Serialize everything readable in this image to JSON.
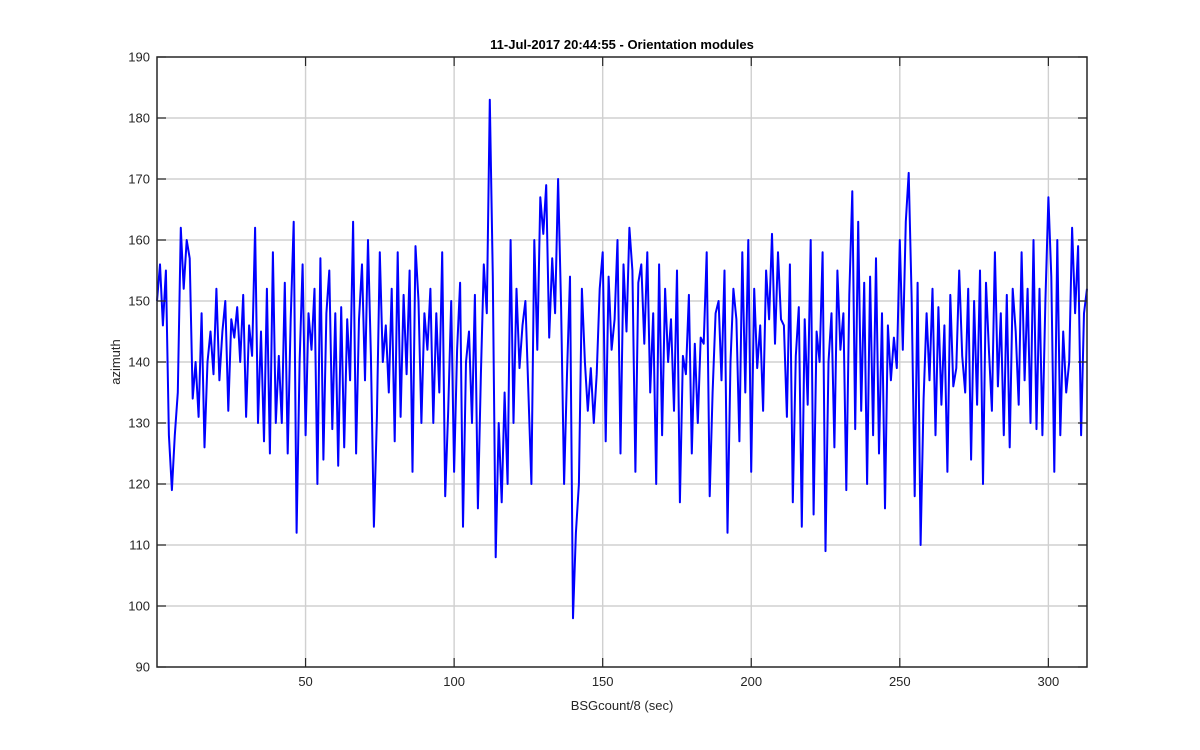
{
  "chart_data": {
    "type": "line",
    "title": "11-Jul-2017 20:44:55 - Orientation modules",
    "xlabel": "BSGcount/8 (sec)",
    "ylabel": "azimuth",
    "xlim": [
      0,
      313
    ],
    "ylim": [
      90,
      190
    ],
    "xticks": [
      50,
      100,
      150,
      200,
      250,
      300
    ],
    "yticks": [
      90,
      100,
      110,
      120,
      130,
      140,
      150,
      160,
      170,
      180,
      190
    ],
    "grid": true,
    "line_color": "#0000ff",
    "series": [
      {
        "x": [
          0,
          1,
          2,
          3,
          4,
          5,
          6,
          7,
          8,
          9,
          10,
          11,
          12,
          13,
          14,
          15,
          16,
          17,
          18,
          19,
          20,
          21,
          22,
          23,
          24,
          25,
          26,
          27,
          28,
          29,
          30,
          31,
          32,
          33,
          34,
          35,
          36,
          37,
          38,
          39,
          40,
          41,
          42,
          43,
          44,
          45,
          46,
          47,
          48,
          49,
          50,
          51,
          52,
          53,
          54,
          55,
          56,
          57,
          58,
          59,
          60,
          61,
          62,
          63,
          64,
          65,
          66,
          67,
          68,
          69,
          70,
          71,
          72,
          73,
          74,
          75,
          76,
          77,
          78,
          79,
          80,
          81,
          82,
          83,
          84,
          85,
          86,
          87,
          88,
          89,
          90,
          91,
          92,
          93,
          94,
          95,
          96,
          97,
          98,
          99,
          100,
          101,
          102,
          103,
          104,
          105,
          106,
          107,
          108,
          109,
          110,
          111,
          112,
          113,
          114,
          115,
          116,
          117,
          118,
          119,
          120,
          121,
          122,
          123,
          124,
          125,
          126,
          127,
          128,
          129,
          130,
          131,
          132,
          133,
          134,
          135,
          136,
          137,
          138,
          139,
          140,
          141,
          142,
          143,
          144,
          145,
          146,
          147,
          148,
          149,
          150,
          151,
          152,
          153,
          154,
          155,
          156,
          157,
          158,
          159,
          160,
          161,
          162,
          163,
          164,
          165,
          166,
          167,
          168,
          169,
          170,
          171,
          172,
          173,
          174,
          175,
          176,
          177,
          178,
          179,
          180,
          181,
          182,
          183,
          184,
          185,
          186,
          187,
          188,
          189,
          190,
          191,
          192,
          193,
          194,
          195,
          196,
          197,
          198,
          199,
          200,
          201,
          202,
          203,
          204,
          205,
          206,
          207,
          208,
          209,
          210,
          211,
          212,
          213,
          214,
          215,
          216,
          217,
          218,
          219,
          220,
          221,
          222,
          223,
          224,
          225,
          226,
          227,
          228,
          229,
          230,
          231,
          232,
          233,
          234,
          235,
          236,
          237,
          238,
          239,
          240,
          241,
          242,
          243,
          244,
          245,
          246,
          247,
          248,
          249,
          250,
          251,
          252,
          253,
          254,
          255,
          256,
          257,
          258,
          259,
          260,
          261,
          262,
          263,
          264,
          265,
          266,
          267,
          268,
          269,
          270,
          271,
          272,
          273,
          274,
          275,
          276,
          277,
          278,
          279,
          280,
          281,
          282,
          283,
          284,
          285,
          286,
          287,
          288,
          289,
          290,
          291,
          292,
          293,
          294,
          295,
          296,
          297,
          298,
          299,
          300,
          301,
          302,
          303,
          304,
          305,
          306,
          307,
          308,
          309,
          310,
          311,
          312,
          313
        ],
        "y": [
          150,
          156,
          146,
          155,
          128,
          119,
          128,
          135,
          162,
          152,
          160,
          157,
          134,
          140,
          131,
          148,
          126,
          140,
          145,
          138,
          152,
          137,
          145,
          150,
          132,
          147,
          144,
          149,
          140,
          151,
          131,
          146,
          141,
          162,
          130,
          145,
          127,
          152,
          125,
          158,
          130,
          141,
          130,
          153,
          125,
          147,
          163,
          112,
          140,
          156,
          128,
          148,
          142,
          152,
          120,
          157,
          124,
          148,
          155,
          129,
          148,
          123,
          149,
          126,
          147,
          137,
          163,
          125,
          147,
          156,
          137,
          160,
          141,
          113,
          131,
          158,
          140,
          146,
          135,
          152,
          127,
          158,
          131,
          151,
          138,
          155,
          122,
          159,
          150,
          130,
          148,
          142,
          152,
          130,
          148,
          135,
          158,
          118,
          132,
          150,
          122,
          142,
          153,
          113,
          140,
          145,
          130,
          151,
          116,
          138,
          156,
          148,
          183,
          154,
          108,
          130,
          117,
          135,
          120,
          160,
          130,
          152,
          139,
          146,
          150,
          135,
          120,
          160,
          142,
          167,
          161,
          169,
          144,
          157,
          148,
          170,
          149,
          120,
          138,
          154,
          98,
          112,
          120,
          152,
          140,
          132,
          139,
          130,
          138,
          152,
          158,
          127,
          154,
          142,
          147,
          160,
          125,
          156,
          145,
          162,
          155,
          122,
          153,
          156,
          143,
          158,
          135,
          148,
          120,
          156,
          128,
          152,
          140,
          147,
          132,
          155,
          117,
          141,
          138,
          151,
          125,
          143,
          130,
          144,
          143,
          158,
          118,
          135,
          148,
          150,
          137,
          155,
          112,
          140,
          152,
          147,
          127,
          158,
          135,
          160,
          122,
          152,
          139,
          146,
          132,
          155,
          147,
          161,
          143,
          158,
          147,
          146,
          131,
          156,
          117,
          141,
          149,
          113,
          147,
          133,
          160,
          115,
          145,
          140,
          158,
          109,
          140,
          148,
          126,
          155,
          142,
          148,
          119,
          151,
          168,
          129,
          163,
          132,
          153,
          120,
          154,
          128,
          157,
          125,
          148,
          116,
          146,
          137,
          144,
          139,
          160,
          142,
          163,
          171,
          150,
          118,
          153,
          110,
          134,
          148,
          137,
          152,
          128,
          149,
          133,
          146,
          122,
          151,
          136,
          139,
          155,
          141,
          135,
          152,
          124,
          150,
          133,
          155,
          120,
          153,
          142,
          132,
          158,
          136,
          148,
          128,
          151,
          126,
          152,
          145,
          133,
          158,
          137,
          152,
          130,
          160,
          129,
          152,
          128,
          150,
          167,
          154,
          122,
          160,
          128,
          145,
          135,
          140,
          162,
          148,
          159,
          128,
          148,
          152
        ]
      }
    ]
  }
}
